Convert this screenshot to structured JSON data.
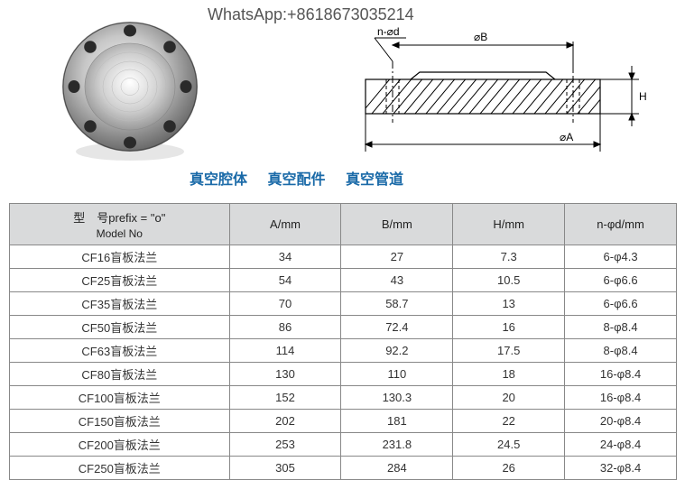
{
  "header": {
    "whatsapp": "WhatsApp:+8618673035214"
  },
  "tags": {
    "t1": "真空腔体",
    "t2": "真空配件",
    "t3": "真空管道"
  },
  "drawing_labels": {
    "n_phi_d": "n-⌀d",
    "phi_b": "⌀B",
    "phi_a": "⌀A",
    "h": "H"
  },
  "table": {
    "header": {
      "model_prefix_line": "型　号prefix = \"o\"",
      "model_sub": "Model No",
      "a": "A/mm",
      "b": "B/mm",
      "h": "H/mm",
      "n_phi_d": "n-φd/mm"
    },
    "rows": [
      {
        "model": "CF16盲板法兰",
        "a": "34",
        "b": "27",
        "h": "7.3",
        "n": "6-φ4.3"
      },
      {
        "model": "CF25盲板法兰",
        "a": "54",
        "b": "43",
        "h": "10.5",
        "n": "6-φ6.6"
      },
      {
        "model": "CF35盲板法兰",
        "a": "70",
        "b": "58.7",
        "h": "13",
        "n": "6-φ6.6"
      },
      {
        "model": "CF50盲板法兰",
        "a": "86",
        "b": "72.4",
        "h": "16",
        "n": "8-φ8.4"
      },
      {
        "model": "CF63盲板法兰",
        "a": "114",
        "b": "92.2",
        "h": "17.5",
        "n": "8-φ8.4"
      },
      {
        "model": "CF80盲板法兰",
        "a": "130",
        "b": "110",
        "h": "18",
        "n": "16-φ8.4"
      },
      {
        "model": "CF100盲板法兰",
        "a": "152",
        "b": "130.3",
        "h": "20",
        "n": "16-φ8.4"
      },
      {
        "model": "CF150盲板法兰",
        "a": "202",
        "b": "181",
        "h": "22",
        "n": "20-φ8.4"
      },
      {
        "model": "CF200盲板法兰",
        "a": "253",
        "b": "231.8",
        "h": "24.5",
        "n": "24-φ8.4"
      },
      {
        "model": "CF250盲板法兰",
        "a": "305",
        "b": "284",
        "h": "26",
        "n": "32-φ8.4"
      }
    ]
  },
  "drawing_style": {
    "hatch_stroke": "#000000",
    "line_stroke": "#000000",
    "bg": "#ffffff"
  },
  "photo_style": {
    "body_light": "#e8e8e8",
    "body_mid": "#b0b0b0",
    "body_dark": "#6a6a6a",
    "hole": "#222222"
  }
}
